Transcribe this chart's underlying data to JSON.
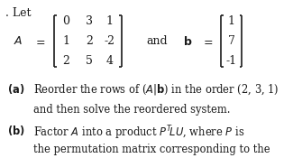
{
  "bg_color": "#ffffff",
  "text_color": "#1a1a1a",
  "matrix_A": [
    [
      "0",
      "3",
      "1"
    ],
    [
      "1",
      "2",
      "-2"
    ],
    [
      "2",
      "5",
      "4"
    ]
  ],
  "vector_b": [
    "1",
    "7",
    "-1"
  ],
  "let_text": ". Let",
  "and_text": "and",
  "fs_main": 9.0,
  "fs_body": 8.3,
  "fig_w": 3.25,
  "fig_h": 1.75,
  "dpi": 100
}
